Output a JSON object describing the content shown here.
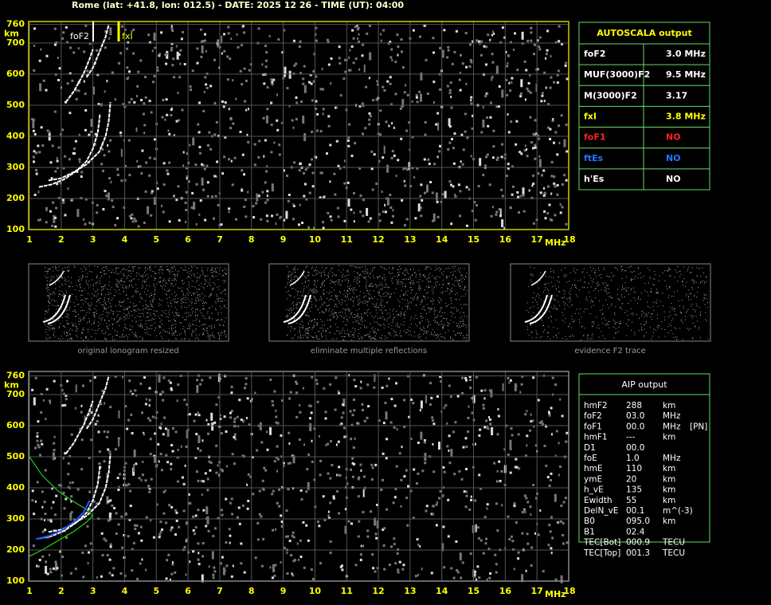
{
  "header": {
    "title": "Rome (lat: +41.8, lon: 012.5) - DATE: 2025 12 26 - TIME (UT): 04:00"
  },
  "top_plot": {
    "y_unit": "km",
    "x_unit": "MHz",
    "yticks": [
      100,
      200,
      300,
      400,
      500,
      600,
      700,
      760
    ],
    "xticks": [
      1,
      2,
      3,
      4,
      5,
      6,
      7,
      8,
      9,
      10,
      11,
      12,
      13,
      14,
      15,
      16,
      17,
      18
    ],
    "annotations": [
      "foF2",
      "fxI"
    ]
  },
  "autoscala": {
    "title": "AUTOSCALA output",
    "rows": [
      [
        "foF2",
        "3.0 MHz"
      ],
      [
        "MUF(3000)F2",
        "9.5 MHz"
      ],
      [
        "M(3000)F2",
        "3.17"
      ],
      [
        "fxI",
        "3.8 MHz"
      ],
      [
        "foF1",
        "NO"
      ],
      [
        "ftEs",
        "NO"
      ],
      [
        "h'Es",
        "NO"
      ]
    ]
  },
  "thumbnails": {
    "captions": [
      "original ionogram resized",
      "eliminate multiple reflections",
      "evidence F2 trace"
    ]
  },
  "bottom_plot": {
    "y_unit": "km",
    "x_unit": "MHz",
    "yticks": [
      100,
      200,
      300,
      400,
      500,
      600,
      700,
      760
    ],
    "xticks": [
      1,
      2,
      3,
      4,
      5,
      6,
      7,
      8,
      9,
      10,
      11,
      12,
      13,
      14,
      15,
      16,
      17,
      18
    ]
  },
  "aip": {
    "title": "AIP output",
    "rows": [
      [
        "hmF2",
        "288",
        "km"
      ],
      [
        "foF2",
        "03.0",
        "MHz"
      ],
      [
        "foF1",
        "00.0",
        "MHz",
        "[PN]"
      ],
      [
        "hmF1",
        "---",
        "km"
      ],
      [
        "D1",
        "00.0"
      ],
      [
        "foE",
        "1.0",
        "MHz"
      ],
      [
        "hmE",
        "110",
        "km"
      ],
      [
        "ymE",
        "20",
        "km"
      ],
      [
        "h_vE",
        "135",
        "km"
      ],
      [
        "Ewidth",
        "55",
        "km"
      ],
      [
        "DelN_vE",
        "00.1",
        "m^(-3)"
      ],
      [
        "B0",
        "095.0",
        "km"
      ],
      [
        "B1",
        "02.4"
      ],
      [
        "TEC[Bot]",
        "000.9",
        "TECU"
      ],
      [
        "TEC[Top]",
        "001.3",
        "TECU"
      ]
    ]
  }
}
